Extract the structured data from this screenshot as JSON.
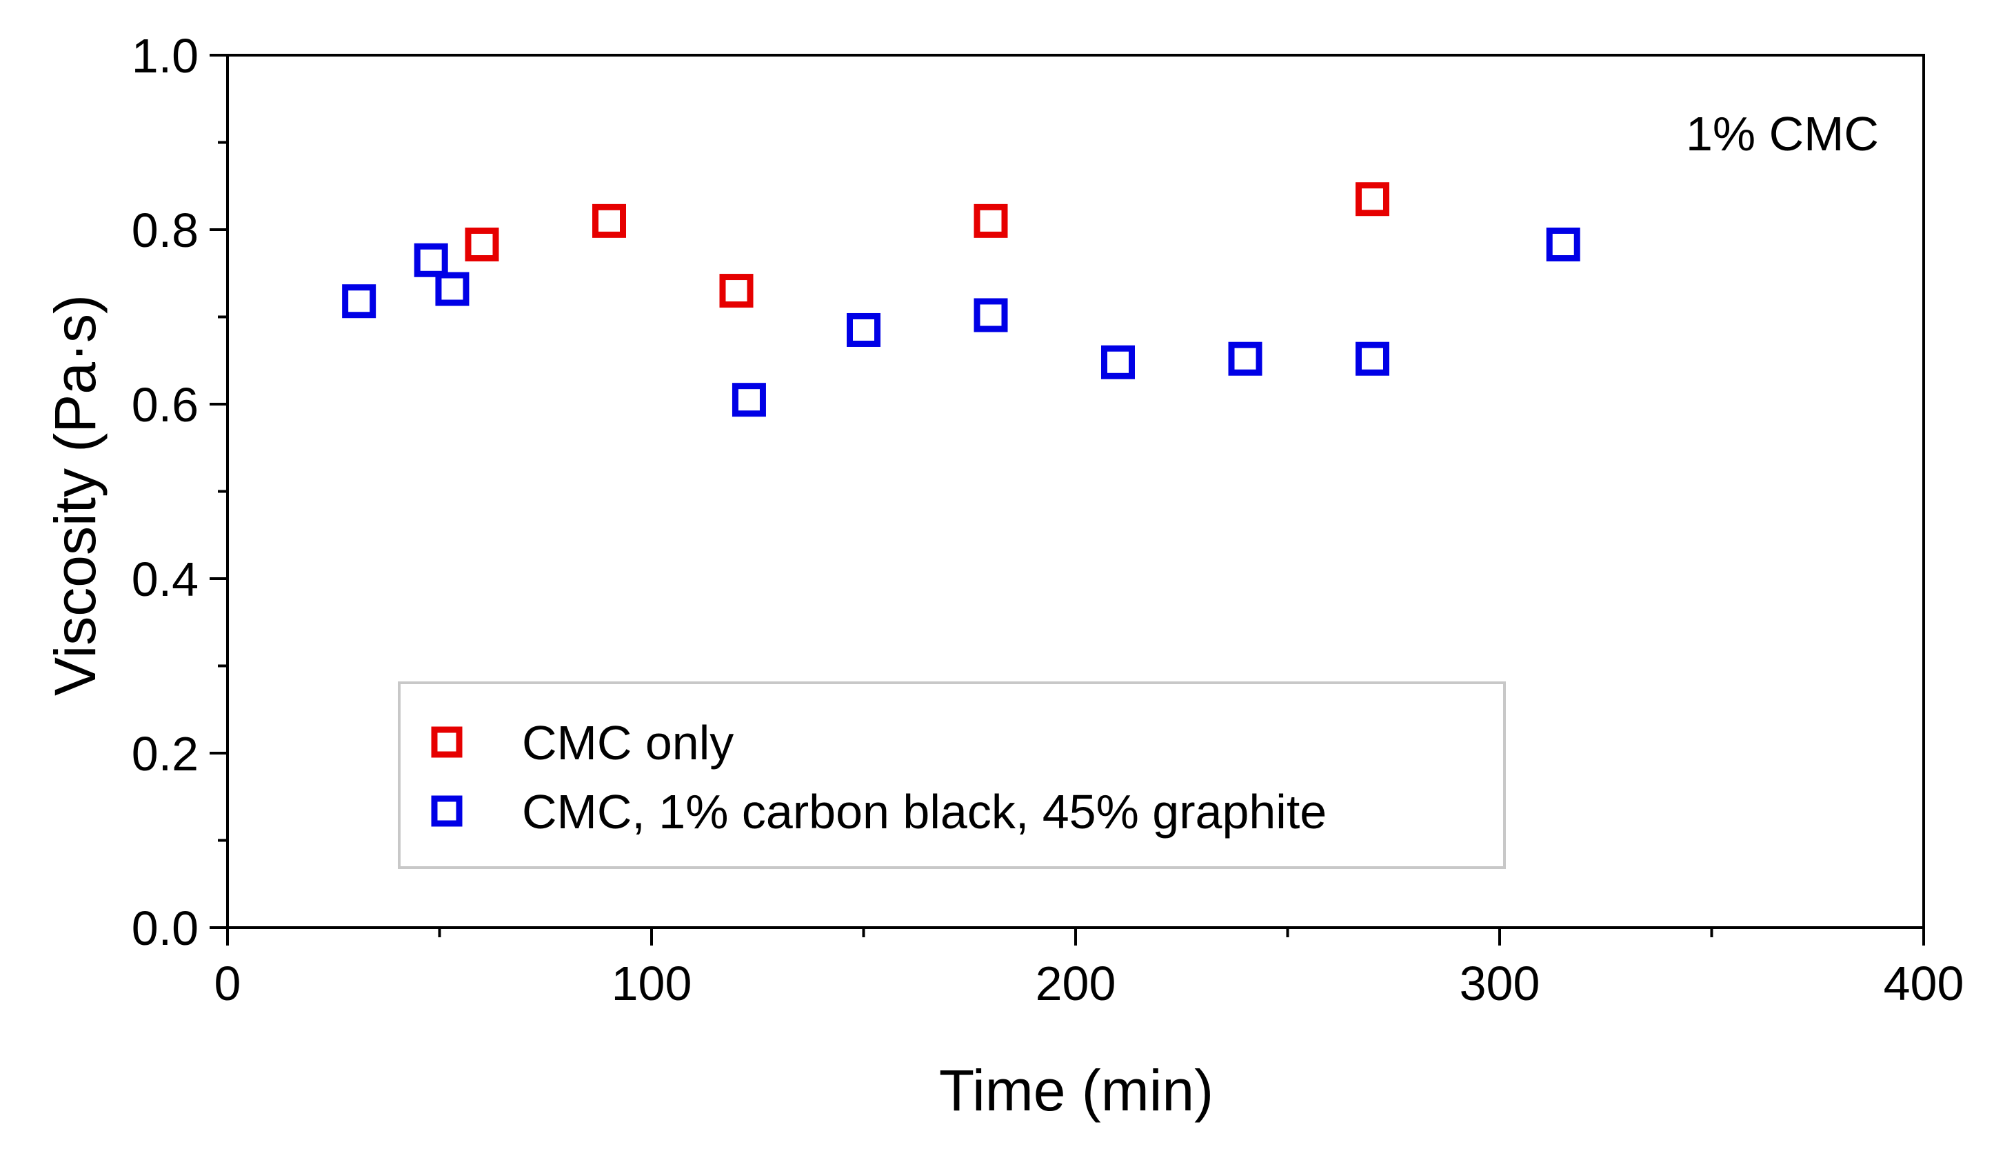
{
  "chart_data": {
    "type": "scatter",
    "title": "",
    "annotation": "1% CMC",
    "xlabel": "Time (min)",
    "ylabel": "Viscosity (Pa·s)",
    "xlim": [
      0,
      400
    ],
    "ylim": [
      0.0,
      1.0
    ],
    "x_ticks": [
      0,
      100,
      200,
      300,
      400
    ],
    "x_tick_labels": [
      "0",
      "100",
      "200",
      "300",
      "400"
    ],
    "x_minor_ticks": [
      50,
      150,
      250,
      350
    ],
    "y_ticks": [
      0.0,
      0.2,
      0.4,
      0.6,
      0.8,
      1.0
    ],
    "y_tick_labels": [
      "0.0",
      "0.2",
      "0.4",
      "0.6",
      "0.8",
      "1.0"
    ],
    "y_minor_ticks": [
      0.1,
      0.3,
      0.5,
      0.7,
      0.9
    ],
    "grid": false,
    "legend_position": "bottom-center",
    "series": [
      {
        "name": "CMC only",
        "color": "#e60000",
        "marker": "open-square",
        "x": [
          60,
          90,
          120,
          180,
          270
        ],
        "y": [
          0.783,
          0.81,
          0.73,
          0.81,
          0.835
        ]
      },
      {
        "name": "CMC, 1% carbon black, 45% graphite",
        "color": "#0000e6",
        "marker": "open-square",
        "x": [
          31,
          48,
          53,
          123,
          150,
          180,
          210,
          240,
          270,
          315
        ],
        "y": [
          0.718,
          0.765,
          0.732,
          0.605,
          0.685,
          0.702,
          0.648,
          0.652,
          0.652,
          0.783
        ]
      }
    ]
  }
}
